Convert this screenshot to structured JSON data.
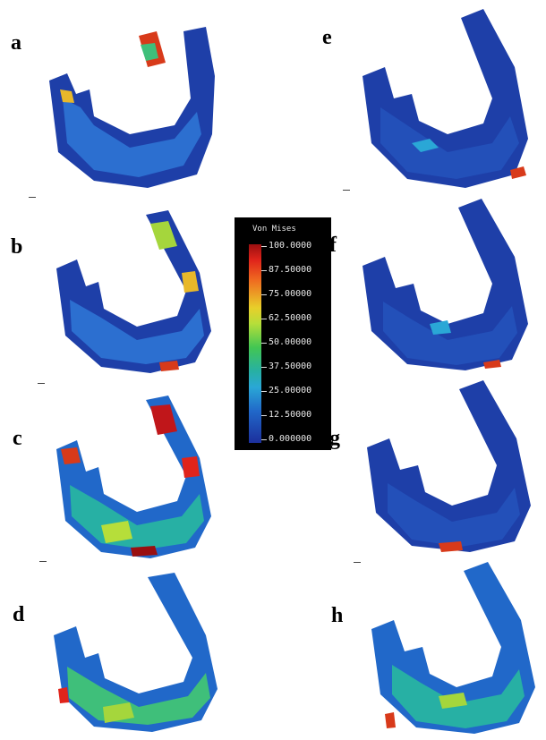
{
  "panels": [
    {
      "label": "a"
    },
    {
      "label": "b"
    },
    {
      "label": "c"
    },
    {
      "label": "d"
    },
    {
      "label": "e"
    },
    {
      "label": "f"
    },
    {
      "label": "g"
    },
    {
      "label": "h"
    }
  ],
  "legend": {
    "title": "Von Mises",
    "values": [
      "100.0000",
      "87.50000",
      "75.00000",
      "62.50000",
      "50.00000",
      "37.50000",
      "25.00000",
      "12.50000",
      "0.000000"
    ],
    "colors": {
      "high": "#9a0f10",
      "mid": "#42c653",
      "low": "#1c2f9c"
    }
  }
}
